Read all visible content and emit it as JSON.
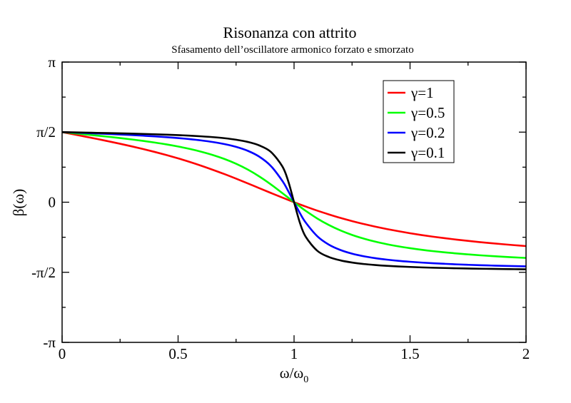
{
  "chart_data": {
    "type": "line",
    "title": "Risonanza con attrito",
    "subtitle": "Sfasamento dell’oscillatore armonico forzato e smorzato",
    "xlabel": "ω/ω",
    "xlabel_subscript": "0",
    "ylabel": "β(ω)",
    "xlim": [
      0,
      2
    ],
    "ylim": [
      -3.14159,
      3.14159
    ],
    "grid": false,
    "legend_position": "top-right",
    "x_ticks": [
      {
        "value": 0,
        "label": "0"
      },
      {
        "value": 0.5,
        "label": "0.5"
      },
      {
        "value": 1,
        "label": "1"
      },
      {
        "value": 1.5,
        "label": "1.5"
      },
      {
        "value": 2,
        "label": "2"
      }
    ],
    "y_ticks": [
      {
        "value": 3.14159,
        "label": "π"
      },
      {
        "value": 1.5708,
        "label": "π/2"
      },
      {
        "value": 0,
        "label": "0"
      },
      {
        "value": -1.5708,
        "label": "-π/2"
      },
      {
        "value": -3.14159,
        "label": "-π"
      }
    ],
    "x": [
      0,
      0.05,
      0.1,
      0.15,
      0.2,
      0.25,
      0.3,
      0.35,
      0.4,
      0.45,
      0.5,
      0.55,
      0.6,
      0.65,
      0.7,
      0.75,
      0.8,
      0.85,
      0.9,
      0.95,
      0.975,
      1,
      1.025,
      1.05,
      1.1,
      1.15,
      1.2,
      1.25,
      1.3,
      1.35,
      1.4,
      1.45,
      1.5,
      1.55,
      1.6,
      1.65,
      1.7,
      1.75,
      1.8,
      1.85,
      1.9,
      1.95,
      2
    ],
    "series": [
      {
        "name": "γ=1",
        "color": "#ff0000",
        "values": [
          1.571,
          1.521,
          1.47,
          1.419,
          1.365,
          1.31,
          1.252,
          1.191,
          1.126,
          1.057,
          0.983,
          0.904,
          0.818,
          0.726,
          0.63,
          0.528,
          0.423,
          0.315,
          0.208,
          0.103,
          0.051,
          0,
          -0.049,
          -0.097,
          -0.189,
          -0.273,
          -0.352,
          -0.423,
          -0.488,
          -0.547,
          -0.601,
          -0.65,
          -0.695,
          -0.736,
          -0.773,
          -0.807,
          -0.838,
          -0.867,
          -0.894,
          -0.918,
          -0.941,
          -0.963,
          -0.983
        ]
      },
      {
        "name": "γ=0.5",
        "color": "#00ff00",
        "values": [
          1.571,
          1.546,
          1.52,
          1.494,
          1.467,
          1.438,
          1.407,
          1.374,
          1.337,
          1.296,
          1.249,
          1.195,
          1.132,
          1.058,
          0.969,
          0.862,
          0.733,
          0.578,
          0.399,
          0.202,
          0.101,
          0,
          -0.098,
          -0.193,
          -0.365,
          -0.511,
          -0.633,
          -0.733,
          -0.815,
          -0.884,
          -0.941,
          -0.989,
          -1.03,
          -1.066,
          -1.097,
          -1.124,
          -1.148,
          -1.169,
          -1.189,
          -1.206,
          -1.222,
          -1.236,
          -1.249
        ]
      },
      {
        "name": "γ=0.2",
        "color": "#0000ff",
        "values": [
          1.571,
          1.561,
          1.551,
          1.54,
          1.529,
          1.518,
          1.505,
          1.491,
          1.476,
          1.458,
          1.438,
          1.414,
          1.385,
          1.349,
          1.303,
          1.241,
          1.153,
          1.021,
          0.812,
          0.474,
          0.248,
          0,
          -0.242,
          -0.454,
          -0.762,
          -0.951,
          -1.071,
          -1.153,
          -1.211,
          -1.254,
          -1.287,
          -1.314,
          -1.335,
          -1.353,
          -1.368,
          -1.381,
          -1.393,
          -1.403,
          -1.412,
          -1.419,
          -1.426,
          -1.432,
          -1.438
        ]
      },
      {
        "name": "γ=0.1",
        "color": "#000000",
        "values": [
          1.571,
          1.566,
          1.561,
          1.555,
          1.55,
          1.544,
          1.538,
          1.531,
          1.523,
          1.514,
          1.504,
          1.492,
          1.477,
          1.459,
          1.435,
          1.401,
          1.352,
          1.273,
          1.128,
          0.798,
          0.469,
          0,
          -0.459,
          -0.773,
          -1.088,
          -1.228,
          -1.304,
          -1.352,
          -1.385,
          -1.408,
          -1.426,
          -1.44,
          -1.451,
          -1.461,
          -1.469,
          -1.475,
          -1.481,
          -1.486,
          -1.491,
          -1.494,
          -1.498,
          -1.501,
          -1.504
        ]
      }
    ]
  }
}
